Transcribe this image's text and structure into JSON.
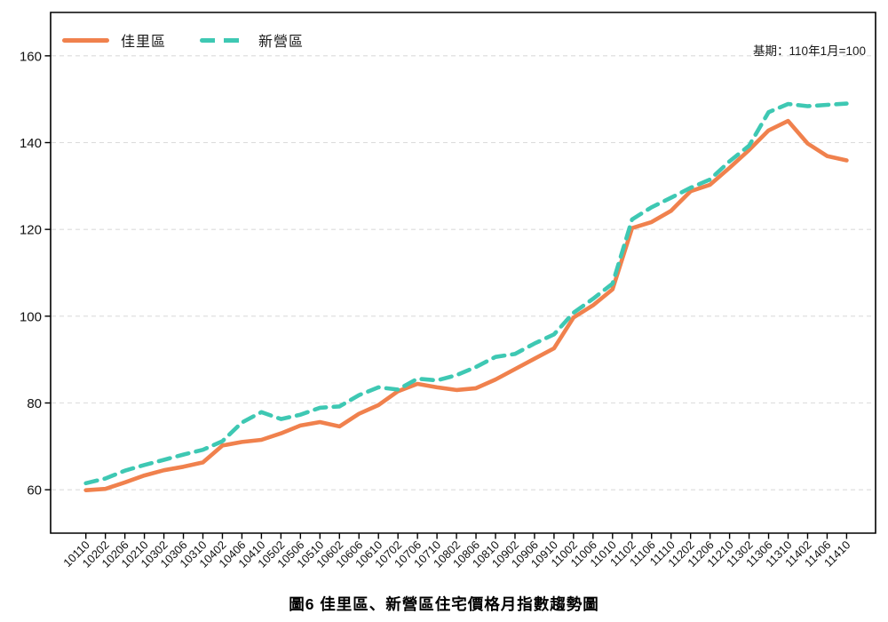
{
  "title": "圖6 佳里區、新營區住宅價格月指數趨勢圖",
  "annotation": "基期：110年1月=100",
  "legend": {
    "series1_label": "佳里區",
    "series2_label": "新營區"
  },
  "colors": {
    "series1": "#F0814D",
    "series2": "#3EC8B3",
    "grid": "#DBDBDB",
    "axis": "#000000",
    "text": "#111111"
  },
  "chart_data": {
    "type": "line",
    "title": "圖6 佳里區、新營區住宅價格月指數趨勢圖",
    "annotation": "基期：110年1月=100",
    "x_labels": [
      "10110",
      "10202",
      "10206",
      "10210",
      "10302",
      "10306",
      "10310",
      "10402",
      "10406",
      "10410",
      "10502",
      "10506",
      "10510",
      "10602",
      "10606",
      "10610",
      "10702",
      "10706",
      "10710",
      "10802",
      "10806",
      "10810",
      "10902",
      "10906",
      "10910",
      "11002",
      "11006",
      "11010",
      "11102",
      "11106",
      "11110",
      "11202",
      "11206",
      "11210",
      "11302",
      "11306",
      "11310",
      "11402",
      "11406",
      "11410"
    ],
    "series": [
      {
        "name": "佳里區",
        "style": "solid",
        "color": "#F0814D",
        "values": [
          59.9,
          60.2,
          61.7,
          63.3,
          64.5,
          65.3,
          66.3,
          70.2,
          71.0,
          71.5,
          73.0,
          74.8,
          75.6,
          74.6,
          77.5,
          79.5,
          82.7,
          84.4,
          83.6,
          83.0,
          83.4,
          85.4,
          87.8,
          90.2,
          92.6,
          99.7,
          102.5,
          106.2,
          120.3,
          121.7,
          124.3,
          128.8,
          130.3,
          134.2,
          138.3,
          142.8,
          145.0,
          139.8,
          136.9,
          135.9
        ]
      },
      {
        "name": "新營區",
        "style": "dashed",
        "color": "#3EC8B3",
        "values": [
          61.5,
          62.6,
          64.4,
          65.7,
          66.9,
          68.1,
          69.2,
          71.2,
          75.5,
          77.9,
          76.3,
          77.3,
          78.9,
          79.2,
          81.8,
          83.6,
          83.1,
          85.6,
          85.2,
          86.4,
          88.3,
          90.6,
          91.3,
          93.7,
          95.8,
          100.8,
          104.0,
          107.5,
          122.3,
          125.1,
          127.3,
          129.6,
          131.5,
          135.7,
          139.3,
          147.0,
          148.9,
          148.4,
          148.7,
          149.0
        ]
      }
    ],
    "ylim": [
      50,
      170
    ],
    "yticks": [
      60,
      80,
      100,
      120,
      140,
      160
    ],
    "grid": "horizontal-dashed",
    "legend_position": "top-left"
  }
}
